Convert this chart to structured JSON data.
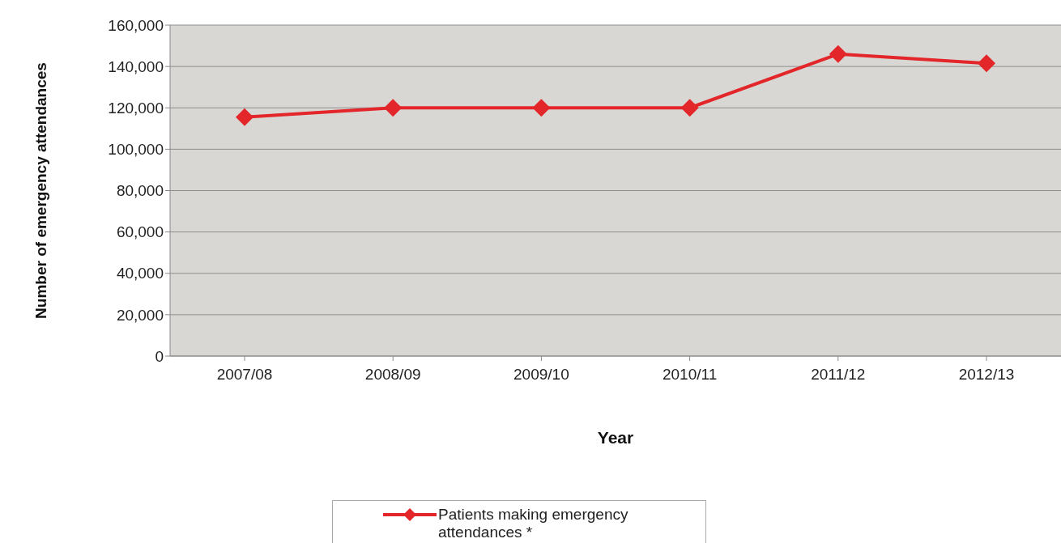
{
  "chart_data": {
    "type": "line",
    "xlabel": "Year",
    "ylabel": "Number of emergency attendances",
    "categories": [
      "2007/08",
      "2008/09",
      "2009/10",
      "2010/11",
      "2011/12",
      "2012/13"
    ],
    "series": [
      {
        "name": "Patients making emergency attendances *",
        "color": "#e3262a",
        "values": [
          115500,
          120000,
          120000,
          120000,
          146000,
          141500
        ]
      }
    ],
    "ylim": [
      0,
      160000
    ],
    "yticks": [
      0,
      {
        "value": 20000,
        "label": "20,000"
      },
      {
        "value": 40000,
        "label": "40,000"
      },
      {
        "value": 60000,
        "label": "60,000"
      },
      {
        "value": 80000,
        "label": "80,000"
      },
      {
        "value": 100000,
        "label": "100,000"
      },
      {
        "value": 120000,
        "label": "120,000"
      },
      {
        "value": 140000,
        "label": "140,000"
      },
      {
        "value": 160000,
        "label": "160,000"
      }
    ],
    "grid": "y",
    "legend": "bottom",
    "marker": "diamond",
    "line_style": "solid"
  }
}
